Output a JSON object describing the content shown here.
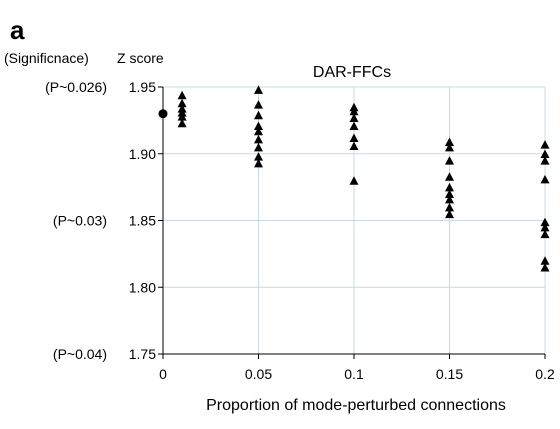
{
  "panel_letter": "a",
  "significance_header": "(Significnace)",
  "chart_data": {
    "type": "scatter",
    "title": "DAR-FFCs",
    "xlabel": "Proportion of mode-perturbed connections",
    "ylabel": "Z score",
    "xlim": [
      0,
      0.2
    ],
    "ylim": [
      1.75,
      1.95
    ],
    "x_ticks": [
      {
        "value": 0,
        "label": "0"
      },
      {
        "value": 0.05,
        "label": "0.05"
      },
      {
        "value": 0.1,
        "label": "0.1"
      },
      {
        "value": 0.15,
        "label": "0.15"
      },
      {
        "value": 0.2,
        "label": "0.2"
      }
    ],
    "y_ticks": [
      {
        "value": 1.75,
        "label": "1.75"
      },
      {
        "value": 1.8,
        "label": "1.80"
      },
      {
        "value": 1.85,
        "label": "1.85"
      },
      {
        "value": 1.9,
        "label": "1.90"
      },
      {
        "value": 1.95,
        "label": "1.95"
      }
    ],
    "significance_labels": [
      {
        "y": 1.95,
        "label": "(P~0.026)"
      },
      {
        "y": 1.85,
        "label": "(P~0.03)"
      },
      {
        "y": 1.75,
        "label": "(P~0.04)"
      }
    ],
    "grid": true,
    "reference_point": {
      "x": 0,
      "y": 1.93,
      "marker": "circle",
      "color": "#000000"
    },
    "series": [
      {
        "marker": "triangle",
        "color": "#000000",
        "points": [
          {
            "x": 0.01,
            "y": 1.944
          },
          {
            "x": 0.01,
            "y": 1.938
          },
          {
            "x": 0.01,
            "y": 1.934
          },
          {
            "x": 0.01,
            "y": 1.931
          },
          {
            "x": 0.01,
            "y": 1.928
          },
          {
            "x": 0.01,
            "y": 1.923
          },
          {
            "x": 0.05,
            "y": 1.948
          },
          {
            "x": 0.05,
            "y": 1.937
          },
          {
            "x": 0.05,
            "y": 1.929
          },
          {
            "x": 0.05,
            "y": 1.921
          },
          {
            "x": 0.05,
            "y": 1.917
          },
          {
            "x": 0.05,
            "y": 1.911
          },
          {
            "x": 0.05,
            "y": 1.905
          },
          {
            "x": 0.05,
            "y": 1.898
          },
          {
            "x": 0.05,
            "y": 1.893
          },
          {
            "x": 0.1,
            "y": 1.935
          },
          {
            "x": 0.1,
            "y": 1.932
          },
          {
            "x": 0.1,
            "y": 1.927
          },
          {
            "x": 0.1,
            "y": 1.921
          },
          {
            "x": 0.1,
            "y": 1.912
          },
          {
            "x": 0.1,
            "y": 1.906
          },
          {
            "x": 0.1,
            "y": 1.88
          },
          {
            "x": 0.15,
            "y": 1.909
          },
          {
            "x": 0.15,
            "y": 1.905
          },
          {
            "x": 0.15,
            "y": 1.895
          },
          {
            "x": 0.15,
            "y": 1.883
          },
          {
            "x": 0.15,
            "y": 1.875
          },
          {
            "x": 0.15,
            "y": 1.87
          },
          {
            "x": 0.15,
            "y": 1.866
          },
          {
            "x": 0.15,
            "y": 1.86
          },
          {
            "x": 0.15,
            "y": 1.855
          },
          {
            "x": 0.2,
            "y": 1.907
          },
          {
            "x": 0.2,
            "y": 1.9
          },
          {
            "x": 0.2,
            "y": 1.895
          },
          {
            "x": 0.2,
            "y": 1.881
          },
          {
            "x": 0.2,
            "y": 1.849
          },
          {
            "x": 0.2,
            "y": 1.845
          },
          {
            "x": 0.2,
            "y": 1.84
          },
          {
            "x": 0.2,
            "y": 1.82
          },
          {
            "x": 0.2,
            "y": 1.815
          }
        ]
      }
    ]
  }
}
